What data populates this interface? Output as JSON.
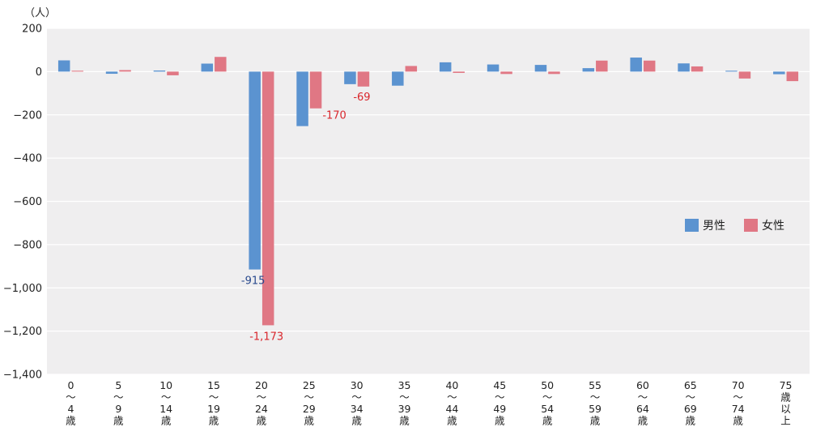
{
  "chart_data": {
    "type": "bar",
    "unit_label": "（人）",
    "categories": [
      [
        "0",
        "〜",
        "4",
        "歳"
      ],
      [
        "5",
        "〜",
        "9",
        "歳"
      ],
      [
        "10",
        "〜",
        "14",
        "歳"
      ],
      [
        "15",
        "〜",
        "19",
        "歳"
      ],
      [
        "20",
        "〜",
        "24",
        "歳"
      ],
      [
        "25",
        "〜",
        "29",
        "歳"
      ],
      [
        "30",
        "〜",
        "34",
        "歳"
      ],
      [
        "35",
        "〜",
        "39",
        "歳"
      ],
      [
        "40",
        "〜",
        "44",
        "歳"
      ],
      [
        "45",
        "〜",
        "49",
        "歳"
      ],
      [
        "50",
        "〜",
        "54",
        "歳"
      ],
      [
        "55",
        "〜",
        "59",
        "歳"
      ],
      [
        "60",
        "〜",
        "64",
        "歳"
      ],
      [
        "65",
        "〜",
        "69",
        "歳"
      ],
      [
        "70",
        "〜",
        "74",
        "歳"
      ],
      [
        "75",
        "歳",
        "以",
        "上"
      ]
    ],
    "series": [
      {
        "name": "男性",
        "color": "#5b93d0",
        "label_color": "#2a4a8e",
        "values": [
          52,
          -10,
          5,
          37,
          -915,
          -252,
          -58,
          -65,
          43,
          33,
          31,
          16,
          65,
          38,
          4,
          -12
        ]
      },
      {
        "name": "女性",
        "color": "#e07784",
        "label_color": "#d9262c",
        "values": [
          4,
          7,
          -17,
          68,
          -1173,
          -170,
          -69,
          26,
          -6,
          -11,
          -11,
          51,
          51,
          24,
          -32,
          -44
        ]
      }
    ],
    "data_labels": [
      {
        "series": 0,
        "index": 4,
        "text": "-915"
      },
      {
        "series": 1,
        "index": 4,
        "text": "-1,173"
      },
      {
        "series": 1,
        "index": 5,
        "text": "-170"
      },
      {
        "series": 1,
        "index": 6,
        "text": "-69"
      }
    ],
    "y_ticks": [
      {
        "value": 200,
        "label": "200"
      },
      {
        "value": 0,
        "label": "0"
      },
      {
        "value": -200,
        "label": "−200"
      },
      {
        "value": -400,
        "label": "−400"
      },
      {
        "value": -600,
        "label": "−600"
      },
      {
        "value": -800,
        "label": "−800"
      },
      {
        "value": -1000,
        "label": "−1,000"
      },
      {
        "value": -1200,
        "label": "−1,200"
      },
      {
        "value": -1400,
        "label": "−1,400"
      }
    ],
    "ylim": [
      -1400,
      200
    ],
    "grid": true,
    "legend_position": "right"
  }
}
